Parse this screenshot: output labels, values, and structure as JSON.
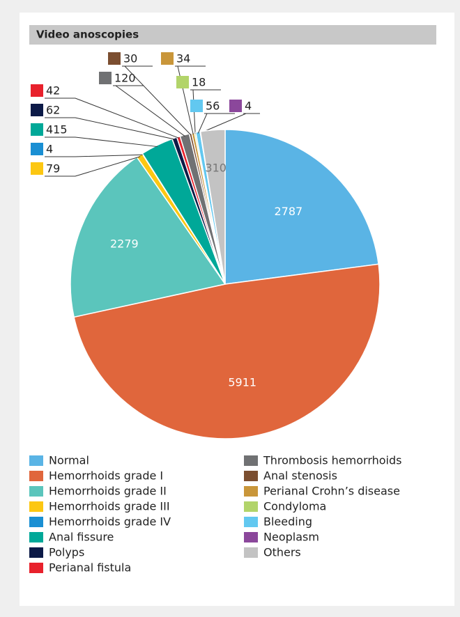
{
  "chart_data": {
    "type": "pie",
    "title": "Video anoscopies",
    "categories": [
      "Normal",
      "Hemorrhoids grade I",
      "Hemorrhoids grade II",
      "Hemorrhoids grade III",
      "Hemorrhoids grade IV",
      "Anal fissure",
      "Polyps",
      "Perianal fistula",
      "Thrombosis  hemorrhoids",
      "Anal stenosis",
      "Perianal Crohn’s disease",
      "Condyloma",
      "Bleeding",
      "Neoplasm",
      "Others"
    ],
    "values": [
      2787,
      5911,
      2279,
      79,
      4,
      415,
      62,
      42,
      120,
      30,
      34,
      18,
      56,
      4,
      310
    ],
    "colors": [
      "#5ab4e5",
      "#e0663c",
      "#5bc5bc",
      "#fcc712",
      "#1a8fd3",
      "#00a898",
      "#0c1a47",
      "#e8212c",
      "#707173",
      "#7b4e30",
      "#c9963a",
      "#b2d46a",
      "#62c8f0",
      "#8b479b",
      "#c3c3c3"
    ]
  }
}
